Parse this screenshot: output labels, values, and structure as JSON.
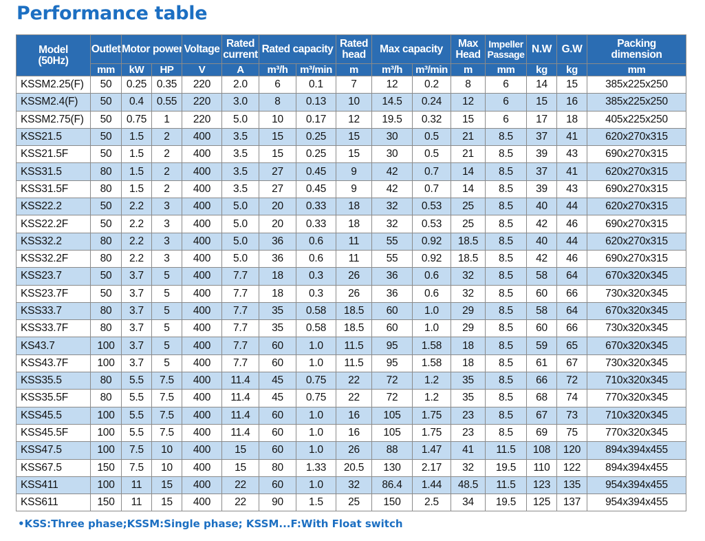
{
  "title": "Performance table",
  "header": {
    "model": "Model",
    "model_freq": "(50Hz)",
    "outlet": "Outlet",
    "motor_power": "Motor power",
    "voltage": "Voltage",
    "rated_current_1": "Rated",
    "rated_current_2": "current",
    "rated_capacity": "Rated capacity",
    "rated_head_1": "Rated",
    "rated_head_2": "head",
    "max_capacity": "Max capacity",
    "max_head_1": "Max",
    "max_head_2": "Head",
    "impeller_1": "Impeller",
    "impeller_2": "Passage",
    "nw": "N.W",
    "gw": "G.W",
    "packing_1": "Packing",
    "packing_2": "dimension"
  },
  "units": [
    "mm",
    "kW",
    "HP",
    "V",
    "A",
    "m³/h",
    "m³/min",
    "m",
    "m³/h",
    "m³/min",
    "m",
    "mm",
    "kg",
    "kg",
    "mm"
  ],
  "rows": [
    [
      "KSSM2.25(F)",
      "50",
      "0.25",
      "0.35",
      "220",
      "2.0",
      "6",
      "0.1",
      "7",
      "12",
      "0.2",
      "8",
      "6",
      "14",
      "15",
      "385x225x250"
    ],
    [
      "KSSM2.4(F)",
      "50",
      "0.4",
      "0.55",
      "220",
      "3.0",
      "8",
      "0.13",
      "10",
      "14.5",
      "0.24",
      "12",
      "6",
      "15",
      "16",
      "385x225x250"
    ],
    [
      "KSSM2.75(F)",
      "50",
      "0.75",
      "1",
      "220",
      "5.0",
      "10",
      "0.17",
      "12",
      "19.5",
      "0.32",
      "15",
      "6",
      "17",
      "18",
      "405x225x250"
    ],
    [
      "KSS21.5",
      "50",
      "1.5",
      "2",
      "400",
      "3.5",
      "15",
      "0.25",
      "15",
      "30",
      "0.5",
      "21",
      "8.5",
      "37",
      "41",
      "620x270x315"
    ],
    [
      "KSS21.5F",
      "50",
      "1.5",
      "2",
      "400",
      "3.5",
      "15",
      "0.25",
      "15",
      "30",
      "0.5",
      "21",
      "8.5",
      "39",
      "43",
      "690x270x315"
    ],
    [
      "KSS31.5",
      "80",
      "1.5",
      "2",
      "400",
      "3.5",
      "27",
      "0.45",
      "9",
      "42",
      "0.7",
      "14",
      "8.5",
      "37",
      "41",
      "620x270x315"
    ],
    [
      "KSS31.5F",
      "80",
      "1.5",
      "2",
      "400",
      "3.5",
      "27",
      "0.45",
      "9",
      "42",
      "0.7",
      "14",
      "8.5",
      "39",
      "43",
      "690x270x315"
    ],
    [
      "KSS22.2",
      "50",
      "2.2",
      "3",
      "400",
      "5.0",
      "20",
      "0.33",
      "18",
      "32",
      "0.53",
      "25",
      "8.5",
      "40",
      "44",
      "620x270x315"
    ],
    [
      "KSS22.2F",
      "50",
      "2.2",
      "3",
      "400",
      "5.0",
      "20",
      "0.33",
      "18",
      "32",
      "0.53",
      "25",
      "8.5",
      "42",
      "46",
      "690x270x315"
    ],
    [
      "KSS32.2",
      "80",
      "2.2",
      "3",
      "400",
      "5.0",
      "36",
      "0.6",
      "11",
      "55",
      "0.92",
      "18.5",
      "8.5",
      "40",
      "44",
      "620x270x315"
    ],
    [
      "KSS32.2F",
      "80",
      "2.2",
      "3",
      "400",
      "5.0",
      "36",
      "0.6",
      "11",
      "55",
      "0.92",
      "18.5",
      "8.5",
      "42",
      "46",
      "690x270x315"
    ],
    [
      "KSS23.7",
      "50",
      "3.7",
      "5",
      "400",
      "7.7",
      "18",
      "0.3",
      "26",
      "36",
      "0.6",
      "32",
      "8.5",
      "58",
      "64",
      "670x320x345"
    ],
    [
      "KSS23.7F",
      "50",
      "3.7",
      "5",
      "400",
      "7.7",
      "18",
      "0.3",
      "26",
      "36",
      "0.6",
      "32",
      "8.5",
      "60",
      "66",
      "730x320x345"
    ],
    [
      "KSS33.7",
      "80",
      "3.7",
      "5",
      "400",
      "7.7",
      "35",
      "0.58",
      "18.5",
      "60",
      "1.0",
      "29",
      "8.5",
      "58",
      "64",
      "670x320x345"
    ],
    [
      "KSS33.7F",
      "80",
      "3.7",
      "5",
      "400",
      "7.7",
      "35",
      "0.58",
      "18.5",
      "60",
      "1.0",
      "29",
      "8.5",
      "60",
      "66",
      "730x320x345"
    ],
    [
      "KS43.7",
      "100",
      "3.7",
      "5",
      "400",
      "7.7",
      "60",
      "1.0",
      "11.5",
      "95",
      "1.58",
      "18",
      "8.5",
      "59",
      "65",
      "670x320x345"
    ],
    [
      "KSS43.7F",
      "100",
      "3.7",
      "5",
      "400",
      "7.7",
      "60",
      "1.0",
      "11.5",
      "95",
      "1.58",
      "18",
      "8.5",
      "61",
      "67",
      "730x320x345"
    ],
    [
      "KSS35.5",
      "80",
      "5.5",
      "7.5",
      "400",
      "11.4",
      "45",
      "0.75",
      "22",
      "72",
      "1.2",
      "35",
      "8.5",
      "66",
      "72",
      "710x320x345"
    ],
    [
      "KSS35.5F",
      "80",
      "5.5",
      "7.5",
      "400",
      "11.4",
      "45",
      "0.75",
      "22",
      "72",
      "1.2",
      "35",
      "8.5",
      "68",
      "74",
      "770x320x345"
    ],
    [
      "KSS45.5",
      "100",
      "5.5",
      "7.5",
      "400",
      "11.4",
      "60",
      "1.0",
      "16",
      "105",
      "1.75",
      "23",
      "8.5",
      "67",
      "73",
      "710x320x345"
    ],
    [
      "KSS45.5F",
      "100",
      "5.5",
      "7.5",
      "400",
      "11.4",
      "60",
      "1.0",
      "16",
      "105",
      "1.75",
      "23",
      "8.5",
      "69",
      "75",
      "770x320x345"
    ],
    [
      "KSS47.5",
      "100",
      "7.5",
      "10",
      "400",
      "15",
      "60",
      "1.0",
      "26",
      "88",
      "1.47",
      "41",
      "11.5",
      "108",
      "120",
      "894x394x455"
    ],
    [
      "KSS67.5",
      "150",
      "7.5",
      "10",
      "400",
      "15",
      "80",
      "1.33",
      "20.5",
      "130",
      "2.17",
      "32",
      "19.5",
      "110",
      "122",
      "894x394x455"
    ],
    [
      "KSS411",
      "100",
      "11",
      "15",
      "400",
      "22",
      "60",
      "1.0",
      "32",
      "86.4",
      "1.44",
      "48.5",
      "11.5",
      "123",
      "135",
      "954x394x455"
    ],
    [
      "KSS611",
      "150",
      "11",
      "15",
      "400",
      "22",
      "90",
      "1.5",
      "25",
      "150",
      "2.5",
      "34",
      "19.5",
      "125",
      "137",
      "954x394x455"
    ]
  ],
  "footnote": "•KSS:Three phase;KSSM:Single phase;  KSSM...F:With Float switch",
  "colors": {
    "title": "#1c6fc2",
    "header_bg": "#2b6db3",
    "row_alt_bg": "#c3dbf1",
    "border": "#8a8a8a"
  }
}
